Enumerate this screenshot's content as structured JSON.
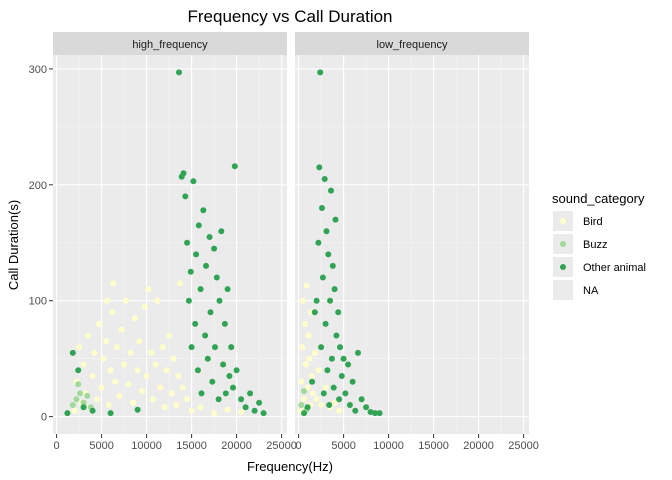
{
  "chart_data": {
    "type": "scatter",
    "title": "Frequency vs Call Duration",
    "xlabel": "Frequency(Hz)",
    "ylabel": "Call Duration(s)",
    "xlim": [
      -400,
      25600
    ],
    "ylim": [
      -15,
      312
    ],
    "x_ticks": [
      0,
      5000,
      10000,
      15000,
      20000,
      25000
    ],
    "x_tick_labels": [
      "0",
      "5000",
      "10000",
      "15000",
      "20000",
      "25000"
    ],
    "y_ticks": [
      0,
      100,
      200,
      300
    ],
    "y_tick_labels": [
      "0",
      "100",
      "200",
      "300"
    ],
    "grid": true,
    "legend_position": "right",
    "legend": {
      "title": "sound_category",
      "entries": [
        {
          "label": "Bird",
          "color": "#ffffcc"
        },
        {
          "label": "Buzz",
          "color": "#a1d99b"
        },
        {
          "label": "Other animal",
          "color": "#31a354"
        },
        {
          "label": "NA",
          "color": ""
        }
      ]
    },
    "panels": [
      {
        "label": "high_frequency",
        "series": [
          {
            "name": "Bird",
            "color": "#ffffcc",
            "points": [
              [
                2000,
                5
              ],
              [
                2200,
                30
              ],
              [
                2500,
                60
              ],
              [
                2800,
                12
              ],
              [
                3000,
                45
              ],
              [
                3200,
                20
              ],
              [
                3500,
                70
              ],
              [
                3700,
                8
              ],
              [
                4000,
                35
              ],
              [
                4200,
                55
              ],
              [
                4500,
                15
              ],
              [
                4700,
                80
              ],
              [
                5000,
                25
              ],
              [
                5200,
                50
              ],
              [
                5500,
                65
              ],
              [
                5600,
                100
              ],
              [
                5800,
                10
              ],
              [
                6000,
                40
              ],
              [
                6200,
                90
              ],
              [
                6300,
                115
              ],
              [
                6500,
                30
              ],
              [
                6700,
                60
              ],
              [
                7000,
                18
              ],
              [
                7200,
                75
              ],
              [
                7500,
                45
              ],
              [
                7700,
                100
              ],
              [
                8000,
                28
              ],
              [
                8200,
                55
              ],
              [
                8500,
                12
              ],
              [
                8700,
                85
              ],
              [
                9000,
                40
              ],
              [
                9200,
                65
              ],
              [
                9500,
                22
              ],
              [
                9800,
                95
              ],
              [
                10000,
                35
              ],
              [
                10200,
                110
              ],
              [
                10500,
                55
              ],
              [
                10700,
                15
              ],
              [
                11000,
                45
              ],
              [
                11200,
                100
              ],
              [
                11500,
                25
              ],
              [
                11800,
                60
              ],
              [
                12000,
                8
              ],
              [
                12200,
                40
              ],
              [
                12500,
                70
              ],
              [
                12800,
                20
              ],
              [
                13000,
                50
              ],
              [
                13300,
                10
              ],
              [
                13500,
                35
              ],
              [
                13700,
                115
              ],
              [
                14000,
                25
              ],
              [
                14500,
                15
              ],
              [
                15000,
                5
              ],
              [
                16000,
                8
              ],
              [
                17500,
                3
              ],
              [
                19000,
                6
              ],
              [
                20500,
                4
              ]
            ]
          },
          {
            "name": "Buzz",
            "color": "#a1d99b",
            "points": [
              [
                1800,
                10
              ],
              [
                2200,
                15
              ],
              [
                2400,
                28
              ],
              [
                2600,
                20
              ],
              [
                3000,
                12
              ],
              [
                3400,
                18
              ],
              [
                3800,
                8
              ]
            ]
          },
          {
            "name": "Other animal",
            "color": "#31a354",
            "points": [
              [
                1200,
                3
              ],
              [
                1800,
                55
              ],
              [
                2400,
                40
              ],
              [
                3000,
                8
              ],
              [
                4000,
                5
              ],
              [
                6000,
                3
              ],
              [
                9000,
                6
              ],
              [
                13600,
                297
              ],
              [
                13900,
                207
              ],
              [
                14100,
                210
              ],
              [
                14300,
                190
              ],
              [
                14500,
                150
              ],
              [
                14700,
                100
              ],
              [
                14900,
                125
              ],
              [
                15000,
                60
              ],
              [
                15200,
                203
              ],
              [
                15400,
                80
              ],
              [
                15500,
                140
              ],
              [
                15700,
                40
              ],
              [
                15800,
                165
              ],
              [
                16000,
                110
              ],
              [
                16100,
                20
              ],
              [
                16300,
                178
              ],
              [
                16500,
                70
              ],
              [
                16600,
                130
              ],
              [
                16800,
                50
              ],
              [
                17000,
                155
              ],
              [
                17100,
                90
              ],
              [
                17300,
                30
              ],
              [
                17500,
                145
              ],
              [
                17600,
                60
              ],
              [
                17800,
                120
              ],
              [
                18000,
                15
              ],
              [
                18100,
                100
              ],
              [
                18300,
                160
              ],
              [
                18500,
                45
              ],
              [
                18700,
                80
              ],
              [
                18800,
                20
              ],
              [
                19000,
                110
              ],
              [
                19200,
                35
              ],
              [
                19400,
                60
              ],
              [
                19600,
                25
              ],
              [
                19800,
                216
              ],
              [
                20000,
                40
              ],
              [
                20500,
                15
              ],
              [
                21000,
                8
              ],
              [
                21500,
                20
              ],
              [
                22000,
                5
              ],
              [
                22500,
                12
              ],
              [
                23000,
                3
              ]
            ]
          }
        ]
      },
      {
        "label": "low_frequency",
        "series": [
          {
            "name": "Bird",
            "color": "#ffffcc",
            "points": [
              [
                200,
                5
              ],
              [
                300,
                30
              ],
              [
                400,
                60
              ],
              [
                500,
                100
              ],
              [
                600,
                15
              ],
              [
                700,
                80
              ],
              [
                800,
                45
              ],
              [
                900,
                113
              ],
              [
                1000,
                25
              ],
              [
                1100,
                70
              ],
              [
                1200,
                50
              ],
              [
                1300,
                10
              ],
              [
                1400,
                90
              ],
              [
                1500,
                35
              ],
              [
                1600,
                20
              ],
              [
                1800,
                55
              ],
              [
                2000,
                15
              ],
              [
                2200,
                40
              ],
              [
                2500,
                10
              ],
              [
                3000,
                25
              ],
              [
                3500,
                8
              ],
              [
                4000,
                12
              ],
              [
                4500,
                5
              ]
            ]
          },
          {
            "name": "Buzz",
            "color": "#a1d99b",
            "points": [
              [
                300,
                10
              ],
              [
                600,
                22
              ],
              [
                900,
                6
              ]
            ]
          },
          {
            "name": "Other animal",
            "color": "#31a354",
            "points": [
              [
                600,
                3
              ],
              [
                1000,
                8
              ],
              [
                1500,
                30
              ],
              [
                1800,
                90
              ],
              [
                2000,
                100
              ],
              [
                2200,
                150
              ],
              [
                2300,
                215
              ],
              [
                2400,
                297
              ],
              [
                2500,
                60
              ],
              [
                2600,
                180
              ],
              [
                2700,
                120
              ],
              [
                2800,
                20
              ],
              [
                2900,
                205
              ],
              [
                3000,
                80
              ],
              [
                3100,
                160
              ],
              [
                3200,
                40
              ],
              [
                3300,
                140
              ],
              [
                3400,
                10
              ],
              [
                3500,
                100
              ],
              [
                3600,
                195
              ],
              [
                3700,
                50
              ],
              [
                3800,
                130
              ],
              [
                3900,
                25
              ],
              [
                4000,
                110
              ],
              [
                4100,
                170
              ],
              [
                4200,
                70
              ],
              [
                4400,
                90
              ],
              [
                4500,
                15
              ],
              [
                4600,
                60
              ],
              [
                4800,
                35
              ],
              [
                5000,
                50
              ],
              [
                5200,
                20
              ],
              [
                5500,
                45
              ],
              [
                5700,
                10
              ],
              [
                6000,
                30
              ],
              [
                6300,
                5
              ],
              [
                6600,
                55
              ],
              [
                7000,
                15
              ],
              [
                7500,
                8
              ],
              [
                8000,
                4
              ],
              [
                8500,
                3
              ],
              [
                9000,
                3
              ]
            ]
          }
        ]
      }
    ]
  }
}
